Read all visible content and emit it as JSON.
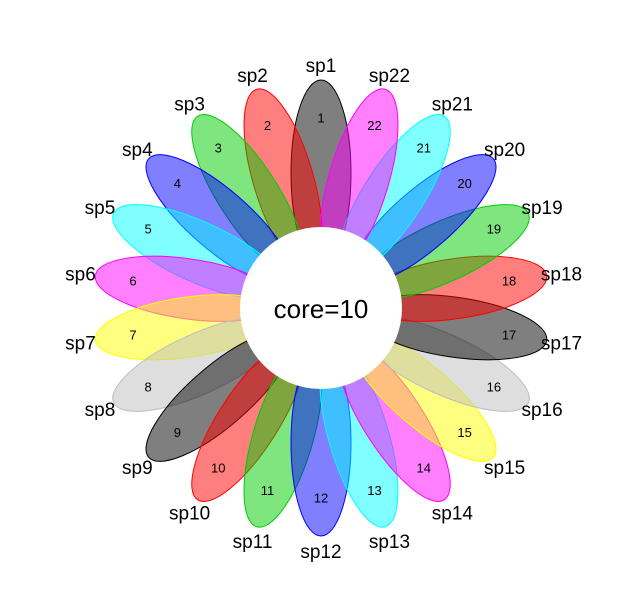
{
  "flower": {
    "core_label": "core=10",
    "core_color": "#ffffff",
    "petals": [
      {
        "sample": "sp1",
        "count": "1",
        "color": "#000000"
      },
      {
        "sample": "sp2",
        "count": "2",
        "color": "#ff0000"
      },
      {
        "sample": "sp3",
        "count": "3",
        "color": "#00cc00"
      },
      {
        "sample": "sp4",
        "count": "4",
        "color": "#0000ff"
      },
      {
        "sample": "sp5",
        "count": "5",
        "color": "#00ffff"
      },
      {
        "sample": "sp6",
        "count": "6",
        "color": "#ff00ff"
      },
      {
        "sample": "sp7",
        "count": "7",
        "color": "#ffff00"
      },
      {
        "sample": "sp8",
        "count": "8",
        "color": "#bebebe"
      },
      {
        "sample": "sp9",
        "count": "9",
        "color": "#000000"
      },
      {
        "sample": "sp10",
        "count": "10",
        "color": "#ff0000"
      },
      {
        "sample": "sp11",
        "count": "11",
        "color": "#00cc00"
      },
      {
        "sample": "sp12",
        "count": "12",
        "color": "#0000ff"
      },
      {
        "sample": "sp13",
        "count": "13",
        "color": "#00ffff"
      },
      {
        "sample": "sp14",
        "count": "14",
        "color": "#ff00ff"
      },
      {
        "sample": "sp15",
        "count": "15",
        "color": "#ffff00"
      },
      {
        "sample": "sp16",
        "count": "16",
        "color": "#bebebe"
      },
      {
        "sample": "sp17",
        "count": "17",
        "color": "#000000"
      },
      {
        "sample": "sp18",
        "count": "18",
        "color": "#ff0000"
      },
      {
        "sample": "sp19",
        "count": "19",
        "color": "#00cc00"
      },
      {
        "sample": "sp20",
        "count": "20",
        "color": "#0000ff"
      },
      {
        "sample": "sp21",
        "count": "21",
        "color": "#00ffff"
      },
      {
        "sample": "sp22",
        "count": "22",
        "color": "#ff00ff"
      }
    ]
  }
}
